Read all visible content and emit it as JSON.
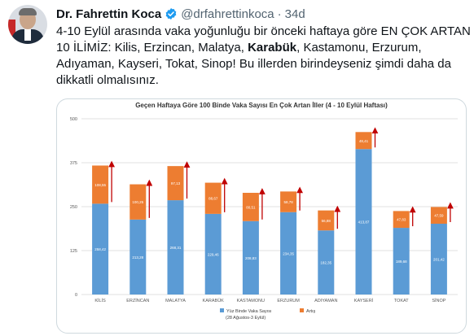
{
  "tweet": {
    "author_name": "Dr. Fahrettin Koca",
    "handle": "@drfahrettinkoca",
    "separator": "·",
    "time": "34d",
    "text_lines": [
      "4-10 Eylül arasında vaka yoğunluğu bir önceki haftaya göre EN ÇOK ARTAN",
      "10 İLİMİZ: Kilis, Erzincan, Malatya, Karabük, Kastamonu, Erzurum,",
      "Adıyaman, Kayseri, Tokat, Sinop! Bu illerden birindeyseniz şimdi daha da",
      "dikkatli olmalısınız."
    ],
    "bold_word": "Karabük",
    "verified_color": "#1d9bf0"
  },
  "chart_data": {
    "type": "bar",
    "stacked": true,
    "title": "Geçen Haftaya Göre 100 Binde Vaka Sayısı En Çok Artan İller (4 - 10 Eylül Haftası)",
    "categories": [
      "KİLİS",
      "ERZİNCAN",
      "MALATYA",
      "KARABÜK",
      "KASTAMONU",
      "ERZURUM",
      "ADIYAMAN",
      "KAYSERİ",
      "TOKAT",
      "SİNOP"
    ],
    "series": [
      {
        "name": "Yüz Binde Vaka Sayısı (28 Ağustos-3 Eylül)",
        "color": "#5b9bd5",
        "values": [
          258.42,
          213.28,
          268.31,
          229.46,
          208.83,
          234.35,
          182.35,
          413.87,
          189.68,
          201.42
        ],
        "labels": [
          "258,42",
          "213,28",
          "268,31",
          "229,46",
          "208,83",
          "234,35",
          "182,35",
          "413,87",
          "189,68",
          "201,42"
        ]
      },
      {
        "name": "Artış",
        "color": "#ed7d31",
        "values": [
          108.55,
          100.25,
          97.13,
          88.67,
          80.51,
          58.78,
          56.88,
          48.41,
          47.83,
          47.59
        ],
        "labels": [
          "108,55",
          "100,25",
          "97,13",
          "88,67",
          "80,51",
          "58,78",
          "56,88",
          "48,41",
          "47,83",
          "47,59"
        ]
      }
    ],
    "ylim": [
      0,
      500
    ],
    "yticks": [
      "0",
      "125",
      "250",
      "375",
      "500"
    ],
    "legend_position": "bottom",
    "grid": true,
    "annotation_arrow_color": "#c00000"
  }
}
